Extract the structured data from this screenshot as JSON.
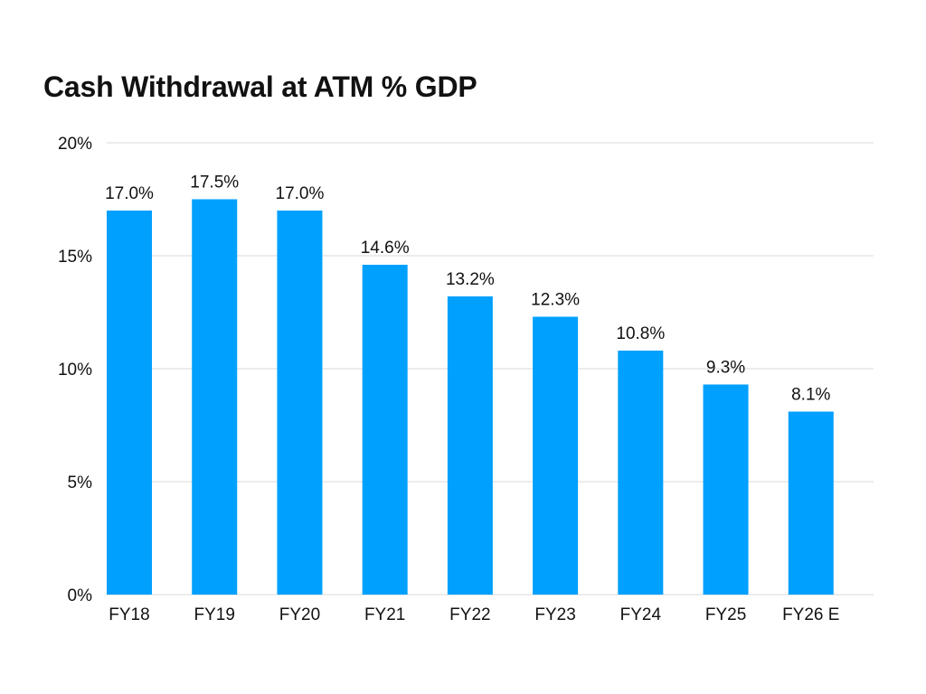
{
  "chart_data": {
    "type": "bar",
    "title": "Cash Withdrawal at ATM % GDP",
    "categories": [
      "FY18",
      "FY19",
      "FY20",
      "FY21",
      "FY22",
      "FY23",
      "FY24",
      "FY25",
      "FY26 E"
    ],
    "values": [
      17.0,
      17.5,
      17.0,
      14.6,
      13.2,
      12.3,
      10.8,
      9.3,
      8.1
    ],
    "data_labels": [
      "17.0%",
      "17.5%",
      "17.0%",
      "14.6%",
      "13.2%",
      "12.3%",
      "10.8%",
      "9.3%",
      "8.1%"
    ],
    "y_ticks": [
      0,
      5,
      10,
      15,
      20
    ],
    "y_tick_labels": [
      "0%",
      "5%",
      "10%",
      "15%",
      "20%"
    ],
    "ylim": [
      0,
      20
    ],
    "xlabel": "",
    "ylabel": "",
    "grid": true,
    "bar_color": "#00a0ff",
    "gridline_color": "#d9d9d9"
  }
}
